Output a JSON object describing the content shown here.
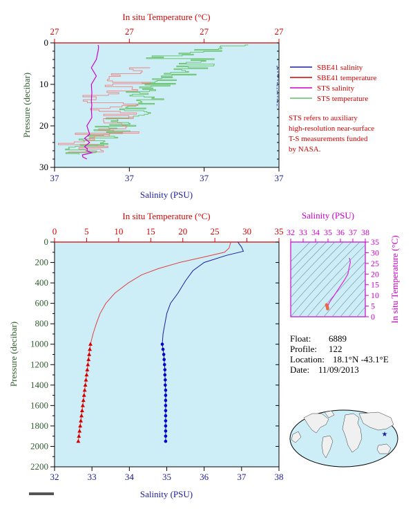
{
  "top_panel": {
    "top_axis_title": "In situ Temperature (°C)",
    "top_ticks": [
      "27",
      "27",
      "27",
      "27"
    ],
    "bottom_axis_title": "Salinity (PSU)",
    "bottom_ticks": [
      "37",
      "37",
      "37",
      "37"
    ],
    "left_axis_title": "Pressure (decibar)",
    "left_ticks": [
      "0",
      "10",
      "20",
      "30"
    ],
    "legend": [
      {
        "label": "SBE41 salinity",
        "color": "#1a1aa0"
      },
      {
        "label": "SBE41 temperature",
        "color": "#d40000"
      },
      {
        "label": "STS salinity",
        "color": "#cc00cc"
      },
      {
        "label": "STS temperature",
        "color": "#5fbf5f"
      }
    ],
    "note_lines": [
      "STS refers to auxiliary",
      "high-resolution near-surface",
      "T-S measurements funded",
      "by NASA."
    ]
  },
  "main_panel": {
    "top_axis_title": "In situ Temperature (°C)",
    "bottom_axis_title": "Salinity (PSU)",
    "left_axis_title": "Pressure (decibar)"
  },
  "ts_panel": {
    "top_axis_title": "Salinity (PSU)",
    "right_axis_title": "In situ Temperature (°C)",
    "top_ticks": [
      "32",
      "33",
      "34",
      "35",
      "36",
      "37",
      "38"
    ],
    "right_ticks": [
      "35",
      "30",
      "25",
      "20",
      "15",
      "10",
      "5",
      "0"
    ]
  },
  "info": {
    "float_label": "Float:",
    "float_value": "6889",
    "profile_label": "Profile:",
    "profile_value": "122",
    "location_label": "Location:",
    "location_value": "18.1°N  -43.1°E",
    "date_label": "Date:",
    "date_value": "11/09/2013"
  },
  "colors": {
    "plot_bg": "#cdeef7",
    "temperature": "#e04040",
    "salinity": "#1a1aa0",
    "sts_salinity": "#cc00cc",
    "sts_temperature": "#5fbf5f",
    "pink_temperature": "#f08080"
  },
  "chart_data": [
    {
      "type": "line",
      "title": "",
      "ylabel": "Pressure (decibar)",
      "ylim": [
        30,
        0
      ],
      "series": [
        {
          "name": "SBE41 salinity",
          "values": []
        },
        {
          "name": "SBE41 temperature",
          "values": []
        },
        {
          "name": "STS salinity",
          "x_fraction": [
            0.2,
            0.19,
            0.2,
            0.18,
            0.17,
            0.18,
            0.17,
            0.16,
            0.17,
            0.16,
            0.17,
            0.16,
            0.15,
            0.15,
            0.14,
            0.15,
            0.14,
            0.14,
            0.15,
            0.16,
            0.13,
            0.12,
            0.15
          ],
          "pressure": [
            0.5,
            1,
            2,
            4,
            6,
            8,
            10,
            12,
            14,
            15,
            16,
            18,
            20,
            22,
            23,
            24,
            25,
            25.5,
            26,
            26.5,
            27,
            27.5,
            28
          ]
        },
        {
          "name": "STS temperature",
          "pressure_range": [
            0.5,
            27
          ]
        }
      ]
    },
    {
      "type": "line",
      "xlabel_top": "In situ Temperature (°C)",
      "xlabel_bottom": "Salinity (PSU)",
      "ylabel": "Pressure (decibar)",
      "temperature_axis": {
        "min": 0,
        "max": 35,
        "ticks": [
          "0",
          "5",
          "10",
          "15",
          "20",
          "25",
          "30",
          "35"
        ]
      },
      "salinity_axis": {
        "min": 32,
        "max": 38,
        "ticks": [
          "32",
          "33",
          "34",
          "35",
          "36",
          "37",
          "38"
        ]
      },
      "pressure_axis": {
        "min": 0,
        "max": 2200,
        "ticks": [
          "0",
          "200",
          "400",
          "600",
          "800",
          "1000",
          "1200",
          "1400",
          "1600",
          "1800",
          "2000",
          "2200"
        ]
      },
      "series": [
        {
          "name": "In situ Temperature (°C)",
          "pressure": [
            0,
            20,
            60,
            100,
            150,
            200,
            260,
            320,
            400,
            500,
            600,
            700,
            800,
            900,
            1000
          ],
          "values": [
            27.5,
            27.4,
            27.2,
            26.5,
            23,
            19.5,
            16.2,
            13.6,
            11.5,
            9.4,
            8.0,
            7.1,
            6.5,
            6.0,
            5.6
          ],
          "marked_pressure": [
            1000,
            1050,
            1100,
            1150,
            1200,
            1250,
            1300,
            1350,
            1400,
            1450,
            1500,
            1550,
            1600,
            1650,
            1700,
            1750,
            1800,
            1850,
            1900,
            1950
          ],
          "marked_values": [
            5.6,
            5.5,
            5.4,
            5.3,
            5.2,
            5.1,
            5.0,
            4.9,
            4.8,
            4.7,
            4.6,
            4.5,
            4.4,
            4.3,
            4.2,
            4.1,
            4.0,
            3.9,
            3.8,
            3.7
          ]
        },
        {
          "name": "Salinity (PSU)",
          "pressure": [
            0,
            50,
            90,
            130,
            200,
            280,
            380,
            500,
            600,
            700,
            800,
            900,
            1000
          ],
          "values": [
            36.9,
            37.0,
            37.05,
            36.6,
            36.0,
            35.7,
            35.5,
            35.3,
            35.1,
            35.0,
            34.95,
            34.9,
            34.88
          ],
          "marked_pressure": [
            1000,
            1050,
            1100,
            1150,
            1200,
            1250,
            1300,
            1350,
            1400,
            1450,
            1500,
            1550,
            1600,
            1650,
            1700,
            1750,
            1800,
            1850,
            1900,
            1950
          ],
          "marked_values": [
            34.88,
            34.9,
            34.92,
            34.93,
            34.94,
            34.95,
            34.95,
            34.96,
            34.96,
            34.97,
            34.97,
            34.97,
            34.97,
            34.97,
            34.97,
            34.97,
            34.97,
            34.97,
            34.97,
            34.97
          ]
        }
      ]
    },
    {
      "type": "scatter",
      "xlabel": "Salinity (PSU)",
      "ylabel": "In situ Temperature (°C)",
      "xlim": [
        32,
        38
      ],
      "ylim": [
        0,
        35
      ],
      "series": [
        {
          "name": "T-S curve",
          "x": [
            35.0,
            35.05,
            35.2,
            35.5,
            35.9,
            36.3,
            36.6,
            36.7,
            36.8,
            36.75,
            36.7
          ],
          "y": [
            5.0,
            6.0,
            7.5,
            10.0,
            13.5,
            17.0,
            20.0,
            23.0,
            25.5,
            27.0,
            27.5
          ]
        },
        {
          "name": "deep points",
          "x": [
            34.88,
            34.9,
            34.92,
            34.93,
            34.95,
            34.96,
            34.97,
            34.97
          ],
          "y": [
            5.6,
            5.3,
            5.0,
            4.8,
            4.5,
            4.2,
            4.0,
            3.7
          ]
        }
      ]
    }
  ]
}
